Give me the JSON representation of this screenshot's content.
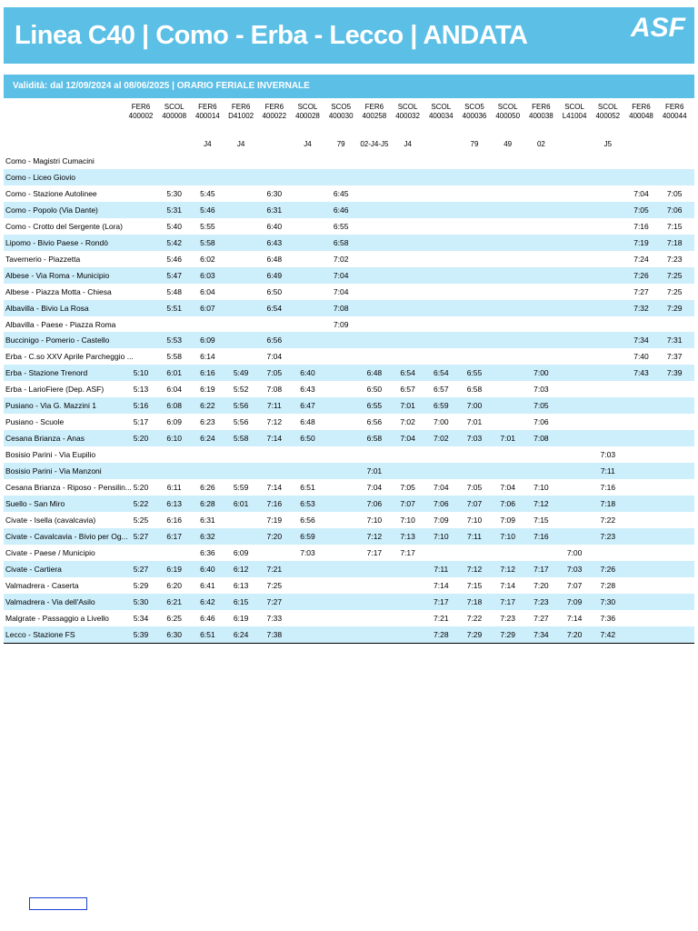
{
  "header": {
    "title": "Linea C40 | Como - Erba - Lecco | ANDATA",
    "logo": "ASF",
    "validity": "Validità: dal 12/09/2024 al 08/06/2025 | ORARIO FERIALE INVERNALE"
  },
  "table": {
    "columns": [
      {
        "type": "FER6",
        "code": "400002",
        "note": null
      },
      {
        "type": "SCOL",
        "code": "400008",
        "note": null
      },
      {
        "type": "FER6",
        "code": "400014",
        "note": "J4"
      },
      {
        "type": "FER6",
        "code": "D41002",
        "note": "J4"
      },
      {
        "type": "FER6",
        "code": "400022",
        "note": null
      },
      {
        "type": "SCOL",
        "code": "400028",
        "note": "J4"
      },
      {
        "type": "SCO5",
        "code": "400030",
        "note": "79"
      },
      {
        "type": "FER6",
        "code": "400258",
        "note": "02-J4-J5"
      },
      {
        "type": "SCOL",
        "code": "400032",
        "note": "J4"
      },
      {
        "type": "SCOL",
        "code": "400034",
        "note": null
      },
      {
        "type": "SCO5",
        "code": "400036",
        "note": "79"
      },
      {
        "type": "SCOL",
        "code": "400050",
        "note": "49"
      },
      {
        "type": "FER6",
        "code": "400038",
        "note": "02"
      },
      {
        "type": "SCOL",
        "code": "L41004",
        "note": null
      },
      {
        "type": "SCOL",
        "code": "400052",
        "note": "J5"
      },
      {
        "type": "FER6",
        "code": "400048",
        "note": null
      },
      {
        "type": "FER6",
        "code": "400044",
        "note": null
      }
    ],
    "rows": [
      {
        "stop": "Como - Magistri Cumacini",
        "times": [
          null,
          null,
          null,
          null,
          null,
          null,
          null,
          null,
          null,
          null,
          null,
          null,
          null,
          null,
          null,
          null,
          null
        ]
      },
      {
        "stop": "Como - Liceo Giovio",
        "times": [
          null,
          null,
          null,
          null,
          null,
          null,
          null,
          null,
          null,
          null,
          null,
          null,
          null,
          null,
          null,
          null,
          null
        ]
      },
      {
        "stop": "Como - Stazione Autolinee",
        "times": [
          null,
          "5:30",
          "5:45",
          null,
          "6:30",
          null,
          "6:45",
          null,
          null,
          null,
          null,
          null,
          null,
          null,
          null,
          "7:04",
          "7:05"
        ]
      },
      {
        "stop": "Como - Popolo (Via Dante)",
        "times": [
          null,
          "5:31",
          "5:46",
          null,
          "6:31",
          null,
          "6:46",
          null,
          null,
          null,
          null,
          null,
          null,
          null,
          null,
          "7:05",
          "7:06"
        ]
      },
      {
        "stop": "Como - Crotto del Sergente (Lora)",
        "times": [
          null,
          "5:40",
          "5:55",
          null,
          "6:40",
          null,
          "6:55",
          null,
          null,
          null,
          null,
          null,
          null,
          null,
          null,
          "7:16",
          "7:15"
        ]
      },
      {
        "stop": "Lipomo - Bivio Paese - Rondò",
        "times": [
          null,
          "5:42",
          "5:58",
          null,
          "6:43",
          null,
          "6:58",
          null,
          null,
          null,
          null,
          null,
          null,
          null,
          null,
          "7:19",
          "7:18"
        ]
      },
      {
        "stop": "Tavernerio - Piazzetta",
        "times": [
          null,
          "5:46",
          "6:02",
          null,
          "6:48",
          null,
          "7:02",
          null,
          null,
          null,
          null,
          null,
          null,
          null,
          null,
          "7:24",
          "7:23"
        ]
      },
      {
        "stop": "Albese - Via Roma - Municipio",
        "times": [
          null,
          "5:47",
          "6:03",
          null,
          "6:49",
          null,
          "7:04",
          null,
          null,
          null,
          null,
          null,
          null,
          null,
          null,
          "7:26",
          "7:25"
        ]
      },
      {
        "stop": "Albese - Piazza Motta - Chiesa",
        "times": [
          null,
          "5:48",
          "6:04",
          null,
          "6:50",
          null,
          "7:04",
          null,
          null,
          null,
          null,
          null,
          null,
          null,
          null,
          "7:27",
          "7:25"
        ]
      },
      {
        "stop": "Albavilla - Bivio La Rosa",
        "times": [
          null,
          "5:51",
          "6:07",
          null,
          "6:54",
          null,
          "7:08",
          null,
          null,
          null,
          null,
          null,
          null,
          null,
          null,
          "7:32",
          "7:29"
        ]
      },
      {
        "stop": "Albavilla - Paese - Piazza Roma",
        "times": [
          null,
          null,
          null,
          null,
          null,
          null,
          "7:09",
          null,
          null,
          null,
          null,
          null,
          null,
          null,
          null,
          null,
          null
        ]
      },
      {
        "stop": "Buccinigo - Pomerio - Castello",
        "times": [
          null,
          "5:53",
          "6:09",
          null,
          "6:56",
          null,
          null,
          null,
          null,
          null,
          null,
          null,
          null,
          null,
          null,
          "7:34",
          "7:31"
        ]
      },
      {
        "stop": "Erba - C.so XXV Aprile Parcheggio ...",
        "times": [
          null,
          "5:58",
          "6:14",
          null,
          "7:04",
          null,
          null,
          null,
          null,
          null,
          null,
          null,
          null,
          null,
          null,
          "7:40",
          "7:37"
        ]
      },
      {
        "stop": "Erba - Stazione Trenord",
        "times": [
          "5:10",
          "6:01",
          "6:16",
          "5:49",
          "7:05",
          "6:40",
          null,
          "6:48",
          "6:54",
          "6:54",
          "6:55",
          null,
          "7:00",
          null,
          null,
          "7:43",
          "7:39"
        ]
      },
      {
        "stop": "Erba - LarioFiere (Dep. ASF)",
        "times": [
          "5:13",
          "6:04",
          "6:19",
          "5:52",
          "7:08",
          "6:43",
          null,
          "6:50",
          "6:57",
          "6:57",
          "6:58",
          null,
          "7:03",
          null,
          null,
          null,
          null
        ]
      },
      {
        "stop": "Pusiano - Via G. Mazzini 1",
        "times": [
          "5:16",
          "6:08",
          "6:22",
          "5:56",
          "7:11",
          "6:47",
          null,
          "6:55",
          "7:01",
          "6:59",
          "7:00",
          null,
          "7:05",
          null,
          null,
          null,
          null
        ]
      },
      {
        "stop": "Pusiano - Scuole",
        "times": [
          "5:17",
          "6:09",
          "6:23",
          "5:56",
          "7:12",
          "6:48",
          null,
          "6:56",
          "7:02",
          "7:00",
          "7:01",
          null,
          "7:06",
          null,
          null,
          null,
          null
        ]
      },
      {
        "stop": "Cesana Brianza - Anas",
        "times": [
          "5:20",
          "6:10",
          "6:24",
          "5:58",
          "7:14",
          "6:50",
          null,
          "6:58",
          "7:04",
          "7:02",
          "7:03",
          "7:01",
          "7:08",
          null,
          null,
          null,
          null
        ]
      },
      {
        "stop": "Bosisio Parini - Via Eupilio",
        "times": [
          null,
          null,
          null,
          null,
          null,
          null,
          null,
          null,
          null,
          null,
          null,
          null,
          null,
          null,
          "7:03",
          null,
          null
        ]
      },
      {
        "stop": "Bosisio Parini - Via Manzoni",
        "times": [
          null,
          null,
          null,
          null,
          null,
          null,
          null,
          "7:01",
          null,
          null,
          null,
          null,
          null,
          null,
          "7:11",
          null,
          null
        ]
      },
      {
        "stop": "Cesana Brianza - Riposo - Pensilin...",
        "times": [
          "5:20",
          "6:11",
          "6:26",
          "5:59",
          "7:14",
          "6:51",
          null,
          "7:04",
          "7:05",
          "7:04",
          "7:05",
          "7:04",
          "7:10",
          null,
          "7:16",
          null,
          null
        ]
      },
      {
        "stop": "Suello - San Miro",
        "times": [
          "5:22",
          "6:13",
          "6:28",
          "6:01",
          "7:16",
          "6:53",
          null,
          "7:06",
          "7:07",
          "7:06",
          "7:07",
          "7:06",
          "7:12",
          null,
          "7:18",
          null,
          null
        ]
      },
      {
        "stop": "Civate - Isella (cavalcavia)",
        "times": [
          "5:25",
          "6:16",
          "6:31",
          null,
          "7:19",
          "6:56",
          null,
          "7:10",
          "7:10",
          "7:09",
          "7:10",
          "7:09",
          "7:15",
          null,
          "7:22",
          null,
          null
        ]
      },
      {
        "stop": "Civate - Cavalcavia - Bivio per Og...",
        "times": [
          "5:27",
          "6:17",
          "6:32",
          null,
          "7:20",
          "6:59",
          null,
          "7:12",
          "7:13",
          "7:10",
          "7:11",
          "7:10",
          "7:16",
          null,
          "7:23",
          null,
          null
        ]
      },
      {
        "stop": "Civate - Paese / Municipio",
        "times": [
          null,
          null,
          "6:36",
          "6:09",
          null,
          "7:03",
          null,
          "7:17",
          "7:17",
          null,
          null,
          null,
          null,
          "7:00",
          null,
          null,
          null
        ]
      },
      {
        "stop": "Civate - Cartiera",
        "times": [
          "5:27",
          "6:19",
          "6:40",
          "6:12",
          "7:21",
          null,
          null,
          null,
          null,
          "7:11",
          "7:12",
          "7:12",
          "7:17",
          "7:03",
          "7:26",
          null,
          null
        ]
      },
      {
        "stop": "Valmadrera - Caserta",
        "times": [
          "5:29",
          "6:20",
          "6:41",
          "6:13",
          "7:25",
          null,
          null,
          null,
          null,
          "7:14",
          "7:15",
          "7:14",
          "7:20",
          "7:07",
          "7:28",
          null,
          null
        ]
      },
      {
        "stop": "Valmadrera - Via dell'Asilo",
        "times": [
          "5:30",
          "6:21",
          "6:42",
          "6:15",
          "7:27",
          null,
          null,
          null,
          null,
          "7:17",
          "7:18",
          "7:17",
          "7:23",
          "7:09",
          "7:30",
          null,
          null
        ]
      },
      {
        "stop": "Malgrate - Passaggio a Livello",
        "times": [
          "5:34",
          "6:25",
          "6:46",
          "6:19",
          "7:33",
          null,
          null,
          null,
          null,
          "7:21",
          "7:22",
          "7:23",
          "7:27",
          "7:14",
          "7:36",
          null,
          null
        ]
      },
      {
        "stop": "Lecco - Stazione FS",
        "times": [
          "5:39",
          "6:30",
          "6:51",
          "6:24",
          "7:38",
          null,
          null,
          null,
          null,
          "7:28",
          "7:29",
          "7:29",
          "7:34",
          "7:20",
          "7:42",
          null,
          null
        ]
      }
    ]
  }
}
